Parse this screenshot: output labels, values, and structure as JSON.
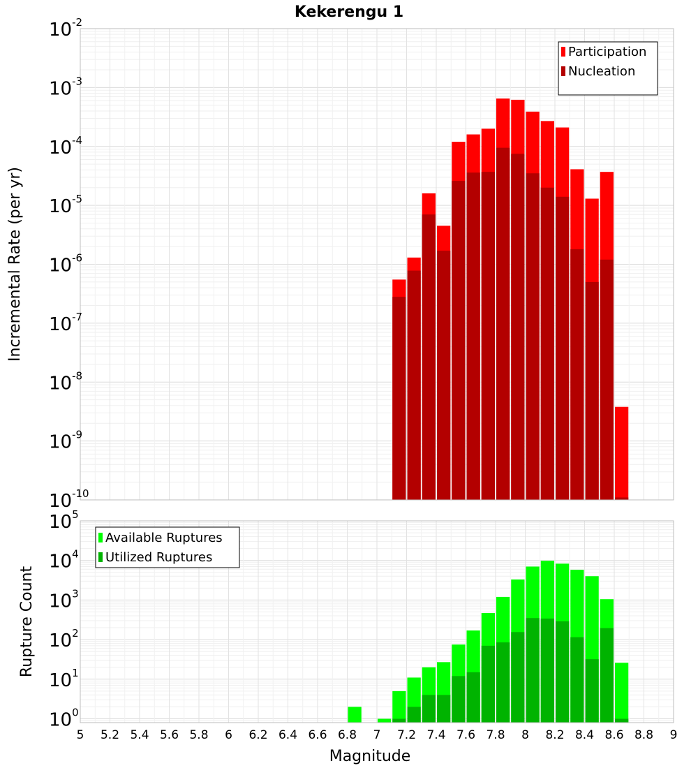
{
  "chart_data": [
    {
      "type": "bar",
      "title": "Kekerengu 1",
      "ylabel": "Incremental Rate (per yr)",
      "yscale": "log",
      "ylim": [
        1e-10,
        0.01
      ],
      "xlim": [
        5,
        9
      ],
      "grid": true,
      "legend": "top-right",
      "bar_width": 0.1,
      "y_ticks": [
        {
          "base": "10",
          "exp": "-10"
        },
        {
          "base": "10",
          "exp": "-9"
        },
        {
          "base": "10",
          "exp": "-8"
        },
        {
          "base": "10",
          "exp": "-7"
        },
        {
          "base": "10",
          "exp": "-6"
        },
        {
          "base": "10",
          "exp": "-5"
        },
        {
          "base": "10",
          "exp": "-4"
        },
        {
          "base": "10",
          "exp": "-3"
        },
        {
          "base": "10",
          "exp": "-2"
        }
      ],
      "x": [
        7.15,
        7.25,
        7.35,
        7.45,
        7.55,
        7.65,
        7.75,
        7.85,
        7.95,
        8.05,
        8.15,
        8.25,
        8.35,
        8.45,
        8.55,
        8.65
      ],
      "series": [
        {
          "name": "Participation",
          "color": "#ff0000",
          "values": [
            5.5e-07,
            1.3e-06,
            1.6e-05,
            4.5e-06,
            0.00012,
            0.00016,
            0.0002,
            0.00065,
            0.00062,
            0.00039,
            0.00027,
            0.00021,
            4.1e-05,
            1.3e-05,
            3.7e-05,
            3.8e-09
          ]
        },
        {
          "name": "Nucleation",
          "color": "#b30000",
          "values": [
            2.8e-07,
            7.8e-07,
            7e-06,
            1.7e-06,
            2.6e-05,
            3.6e-05,
            3.7e-05,
            9.5e-05,
            7.5e-05,
            3.5e-05,
            2e-05,
            1.4e-05,
            1.8e-06,
            5e-07,
            1.2e-06,
            1.1e-10
          ]
        }
      ]
    },
    {
      "type": "bar",
      "ylabel": "Rupture Count",
      "xlabel": "Magnitude",
      "yscale": "log",
      "ylim": [
        0.8,
        100000
      ],
      "xlim": [
        5,
        9
      ],
      "grid": true,
      "legend": "top-left",
      "bar_width": 0.1,
      "y_ticks": [
        {
          "value": 1,
          "base": "10",
          "exp": "0"
        },
        {
          "value": 10,
          "base": "10",
          "exp": "1"
        },
        {
          "value": 100,
          "base": "10",
          "exp": "2"
        },
        {
          "value": 1000,
          "base": "10",
          "exp": "3"
        },
        {
          "value": 10000,
          "base": "10",
          "exp": "4"
        },
        {
          "value": 100000,
          "base": "10",
          "exp": "5"
        }
      ],
      "x_ticks": [
        "5",
        "5.2",
        "5.4",
        "5.6",
        "5.8",
        "6",
        "6.2",
        "6.4",
        "6.6",
        "6.8",
        "7",
        "7.2",
        "7.4",
        "7.6",
        "7.8",
        "8",
        "8.2",
        "8.4",
        "8.6",
        "8.8",
        "9"
      ],
      "x": [
        6.85,
        7.05,
        7.15,
        7.25,
        7.35,
        7.45,
        7.55,
        7.65,
        7.75,
        7.85,
        7.95,
        8.05,
        8.15,
        8.25,
        8.35,
        8.45,
        8.55,
        8.65
      ],
      "series": [
        {
          "name": "Available Ruptures",
          "color": "#00ff00",
          "values": [
            2,
            1,
            5,
            11,
            20,
            27,
            75,
            170,
            470,
            1200,
            3300,
            7000,
            9800,
            8300,
            5800,
            4000,
            1050,
            26
          ]
        },
        {
          "name": "Utilized Ruptures",
          "color": "#00b300",
          "values": [
            0,
            0,
            1,
            2,
            4,
            4,
            12,
            15,
            70,
            85,
            155,
            350,
            340,
            290,
            115,
            32,
            195,
            1
          ]
        }
      ]
    }
  ]
}
